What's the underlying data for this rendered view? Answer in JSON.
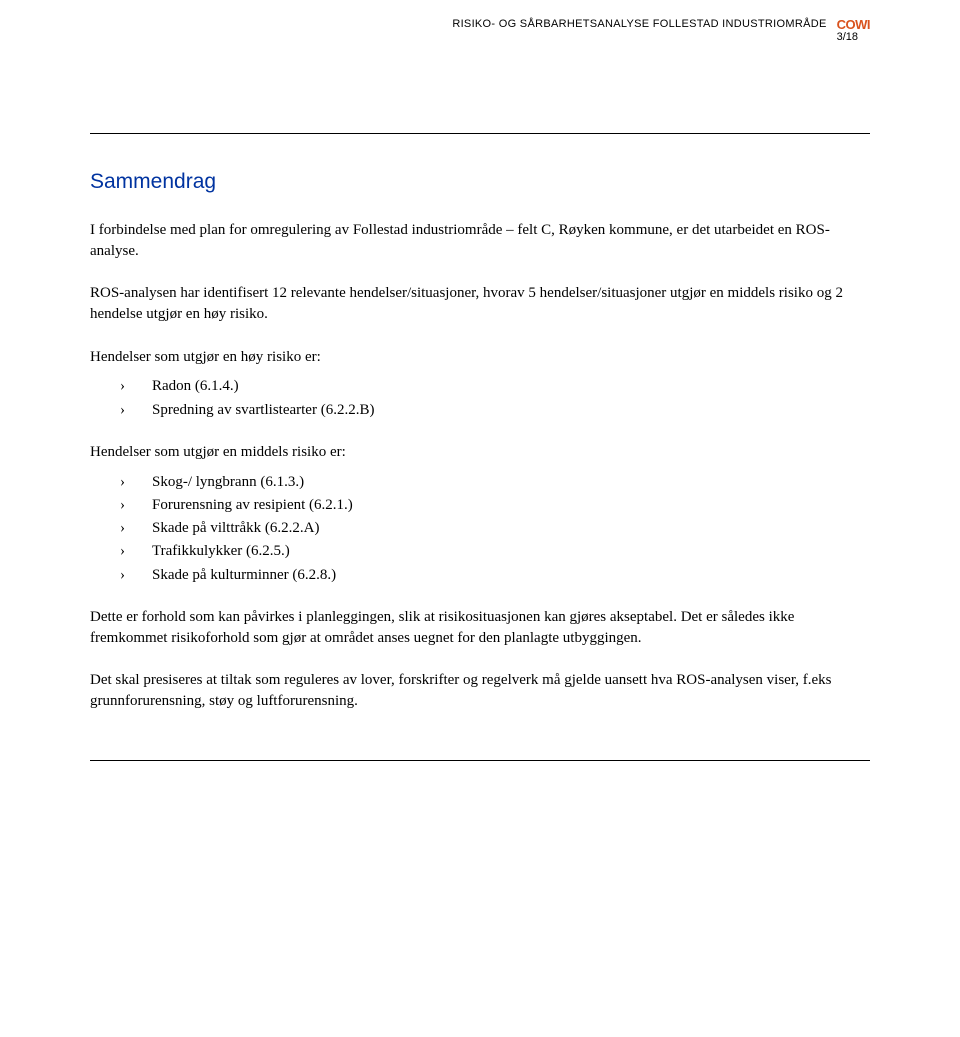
{
  "header": {
    "title": "RISIKO- OG SÅRBARHETSANALYSE FOLLESTAD INDUSTRIOMRÅDE",
    "logo_text": "COWI",
    "page_number": "3/18"
  },
  "section": {
    "title": "Sammendrag"
  },
  "paragraphs": {
    "intro": "I forbindelse med plan for omregulering av Follestad industriområde – felt C, Røyken kommune, er det utarbeidet en ROS-analyse.",
    "analysis": "ROS-analysen har identifisert 12 relevante hendelser/situasjoner, hvorav 5 hendelser/situasjoner utgjør en middels risiko og 2 hendelse utgjør en høy risiko.",
    "high_risk_heading": "Hendelser som utgjør en høy risiko er:",
    "medium_risk_heading": "Hendelser som utgjør en middels risiko er:",
    "conclusion1": "Dette er forhold som kan påvirkes i planleggingen, slik at risikosituasjonen kan gjøres akseptabel. Det er således ikke fremkommet risikoforhold som gjør at området anses uegnet for den planlagte utbyggingen.",
    "conclusion2": "Det skal presiseres at tiltak som reguleres av lover, forskrifter og regelverk må gjelde uansett hva ROS-analysen viser, f.eks grunnforurensning, støy og luftforurensning."
  },
  "lists": {
    "high_risk": [
      "Radon (6.1.4.)",
      "Spredning av svartlistearter (6.2.2.B)"
    ],
    "medium_risk": [
      "Skog-/ lyngbrann (6.1.3.)",
      "Forurensning av resipient (6.2.1.)",
      "Skade på vilttråkk (6.2.2.A)",
      "Trafikkulykker (6.2.5.)",
      "Skade på kulturminner (6.2.8.)"
    ]
  }
}
